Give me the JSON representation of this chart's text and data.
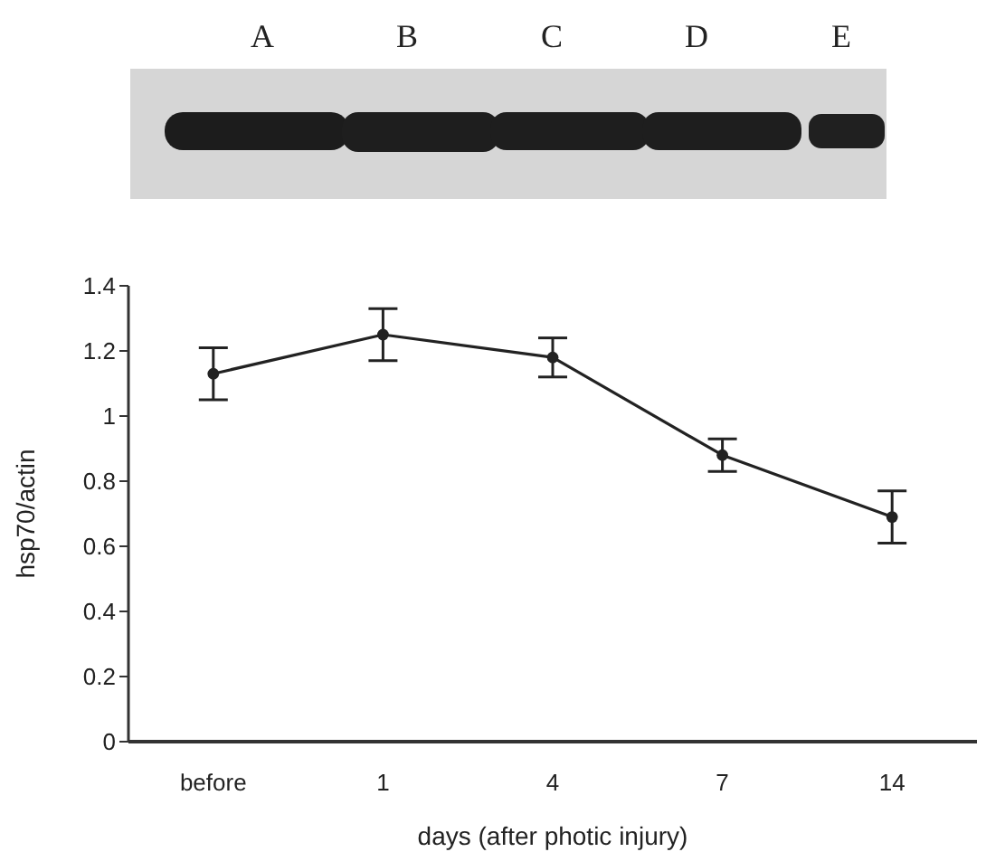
{
  "chart_data": {
    "type": "line",
    "categories": [
      "before",
      "1",
      "4",
      "7",
      "14"
    ],
    "series": [
      {
        "color": "#222222",
        "values": [
          1.13,
          1.25,
          1.18,
          0.88,
          0.69
        ],
        "errors": [
          0.08,
          0.08,
          0.06,
          0.05,
          0.08
        ]
      }
    ],
    "xlabel": "days (after photic injury)",
    "ylabel": "hsp70/actin",
    "ylim": [
      0,
      1.4
    ],
    "yticks": [
      0,
      0.2,
      0.4,
      0.6,
      0.8,
      1,
      1.2,
      1.4
    ],
    "annotations": [
      "A",
      "B",
      "C",
      "D",
      "E"
    ],
    "marker": "circle",
    "line_style": "solid"
  }
}
